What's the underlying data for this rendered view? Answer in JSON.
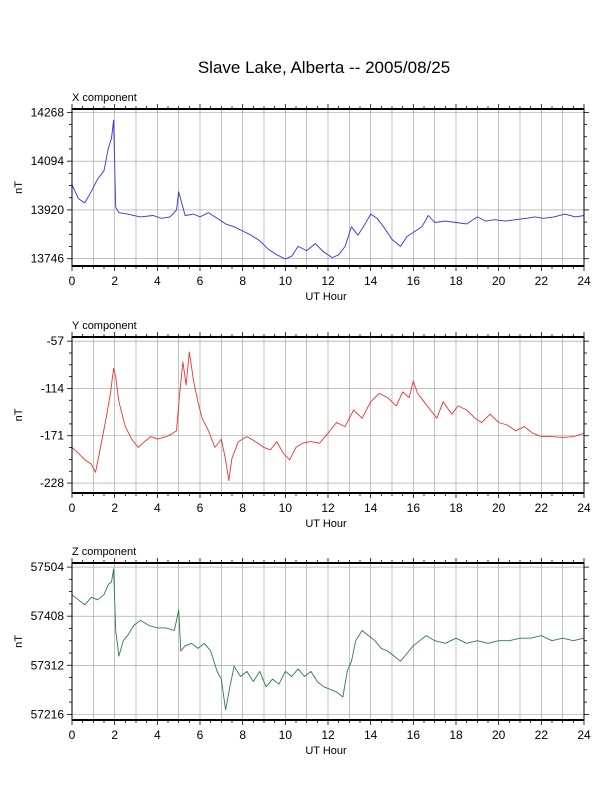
{
  "page": {
    "title": "Slave Lake, Alberta -- 2005/08/25"
  },
  "chart_data": [
    {
      "type": "line",
      "panel_title": "X component",
      "xlabel": "UT Hour",
      "ylabel": "nT",
      "xlim": [
        0,
        24
      ],
      "ylim": [
        13720,
        14280
      ],
      "xticks": [
        0,
        2,
        4,
        6,
        8,
        10,
        12,
        14,
        16,
        18,
        20,
        22,
        24
      ],
      "yticks": [
        13746,
        13920,
        14094,
        14268
      ],
      "grid": true,
      "color": "#3333dd",
      "series": [
        {
          "x": [
            0,
            0.3,
            0.6,
            0.9,
            1.2,
            1.5,
            1.7,
            1.85,
            1.95,
            2.05,
            2.2,
            2.6,
            3.2,
            3.8,
            4.2,
            4.6,
            4.9,
            5.0,
            5.3,
            5.7,
            6.0,
            6.4,
            6.8,
            7.2,
            7.6,
            8.0,
            8.4,
            8.8,
            9.2,
            9.6,
            10.0,
            10.3,
            10.6,
            11.0,
            11.4,
            11.8,
            12.2,
            12.5,
            12.8,
            13.1,
            13.4,
            13.7,
            14.0,
            14.3,
            14.6,
            15.0,
            15.4,
            15.7,
            16.0,
            16.4,
            16.7,
            17.0,
            17.5,
            18.0,
            18.5,
            19.0,
            19.4,
            19.8,
            20.3,
            20.8,
            21.3,
            21.7,
            22.1,
            22.6,
            23.1,
            23.6,
            24.0
          ],
          "y": [
            14010,
            13960,
            13945,
            13985,
            14030,
            14060,
            14140,
            14175,
            14240,
            13930,
            13910,
            13905,
            13895,
            13900,
            13890,
            13895,
            13920,
            13985,
            13900,
            13905,
            13895,
            13910,
            13890,
            13870,
            13860,
            13845,
            13830,
            13810,
            13780,
            13760,
            13745,
            13755,
            13790,
            13775,
            13800,
            13770,
            13750,
            13760,
            13790,
            13860,
            13830,
            13865,
            13905,
            13890,
            13860,
            13815,
            13790,
            13825,
            13840,
            13860,
            13900,
            13875,
            13880,
            13875,
            13870,
            13895,
            13880,
            13885,
            13880,
            13885,
            13890,
            13895,
            13890,
            13895,
            13905,
            13895,
            13900
          ]
        }
      ]
    },
    {
      "type": "line",
      "panel_title": "Y component",
      "xlabel": "UT Hour",
      "ylabel": "nT",
      "xlim": [
        0,
        24
      ],
      "ylim": [
        -240,
        -52
      ],
      "xticks": [
        0,
        2,
        4,
        6,
        8,
        10,
        12,
        14,
        16,
        18,
        20,
        22,
        24
      ],
      "yticks": [
        -57,
        -114,
        -171,
        -228
      ],
      "grid": true,
      "color": "#ee3333",
      "series": [
        {
          "x": [
            0,
            0.3,
            0.6,
            0.9,
            1.1,
            1.3,
            1.6,
            1.8,
            1.95,
            2.05,
            2.2,
            2.5,
            2.8,
            3.1,
            3.4,
            3.7,
            4.0,
            4.3,
            4.6,
            4.9,
            5.05,
            5.2,
            5.35,
            5.5,
            5.7,
            5.9,
            6.1,
            6.4,
            6.7,
            7.0,
            7.2,
            7.35,
            7.5,
            7.8,
            8.2,
            8.6,
            9.0,
            9.3,
            9.6,
            9.9,
            10.2,
            10.5,
            10.8,
            11.2,
            11.6,
            12.0,
            12.4,
            12.8,
            13.2,
            13.6,
            14.0,
            14.4,
            14.8,
            15.2,
            15.5,
            15.8,
            16.0,
            16.2,
            16.5,
            16.8,
            17.1,
            17.4,
            17.8,
            18.1,
            18.5,
            18.9,
            19.2,
            19.6,
            20.0,
            20.4,
            20.8,
            21.2,
            21.6,
            22.0,
            22.5,
            23.0,
            23.5,
            24.0
          ],
          "y": [
            -185,
            -192,
            -200,
            -205,
            -215,
            -190,
            -150,
            -120,
            -90,
            -100,
            -130,
            -160,
            -175,
            -185,
            -178,
            -172,
            -175,
            -173,
            -170,
            -165,
            -120,
            -82,
            -110,
            -70,
            -105,
            -130,
            -150,
            -165,
            -185,
            -175,
            -200,
            -225,
            -198,
            -178,
            -172,
            -178,
            -185,
            -188,
            -178,
            -192,
            -200,
            -185,
            -180,
            -178,
            -180,
            -168,
            -155,
            -160,
            -140,
            -150,
            -130,
            -120,
            -125,
            -135,
            -118,
            -125,
            -105,
            -120,
            -130,
            -140,
            -150,
            -130,
            -145,
            -135,
            -140,
            -150,
            -155,
            -145,
            -155,
            -158,
            -165,
            -160,
            -168,
            -172,
            -172,
            -173,
            -172,
            -168
          ]
        }
      ]
    },
    {
      "type": "line",
      "panel_title": "Z component",
      "xlabel": "UT Hour",
      "ylabel": "nT",
      "xlim": [
        0,
        24
      ],
      "ylim": [
        57205,
        57512
      ],
      "xticks": [
        0,
        2,
        4,
        6,
        8,
        10,
        12,
        14,
        16,
        18,
        20,
        22,
        24
      ],
      "yticks": [
        57504,
        57408,
        57312,
        57216
      ],
      "grid": true,
      "color": "#2e7d46",
      "series": [
        {
          "x": [
            0,
            0.3,
            0.6,
            0.9,
            1.2,
            1.5,
            1.7,
            1.85,
            1.95,
            2.05,
            2.2,
            2.4,
            2.6,
            2.9,
            3.2,
            3.6,
            4.0,
            4.4,
            4.8,
            5.0,
            5.1,
            5.3,
            5.6,
            5.9,
            6.2,
            6.5,
            6.8,
            7.0,
            7.2,
            7.4,
            7.6,
            7.9,
            8.2,
            8.5,
            8.8,
            9.1,
            9.4,
            9.7,
            10.0,
            10.3,
            10.6,
            10.9,
            11.2,
            11.5,
            11.8,
            12.1,
            12.4,
            12.7,
            12.9,
            13.1,
            13.3,
            13.6,
            13.9,
            14.2,
            14.5,
            14.8,
            15.1,
            15.4,
            15.7,
            16.0,
            16.3,
            16.6,
            17.0,
            17.5,
            18.0,
            18.5,
            19.0,
            19.5,
            20.0,
            20.5,
            21.0,
            21.5,
            22.0,
            22.5,
            23.0,
            23.5,
            24.0
          ],
          "y": [
            57450,
            57440,
            57430,
            57445,
            57440,
            57450,
            57470,
            57475,
            57500,
            57380,
            57330,
            57360,
            57370,
            57390,
            57400,
            57390,
            57385,
            57385,
            57380,
            57420,
            57340,
            57350,
            57355,
            57345,
            57355,
            57340,
            57300,
            57285,
            57225,
            57270,
            57310,
            57290,
            57300,
            57280,
            57300,
            57270,
            57285,
            57275,
            57300,
            57290,
            57305,
            57290,
            57300,
            57280,
            57270,
            57265,
            57260,
            57250,
            57300,
            57320,
            57360,
            57380,
            57370,
            57360,
            57345,
            57340,
            57330,
            57320,
            57335,
            57350,
            57360,
            57370,
            57360,
            57355,
            57365,
            57355,
            57360,
            57355,
            57360,
            57360,
            57365,
            57365,
            57370,
            57360,
            57365,
            57360,
            57365
          ]
        }
      ]
    }
  ]
}
